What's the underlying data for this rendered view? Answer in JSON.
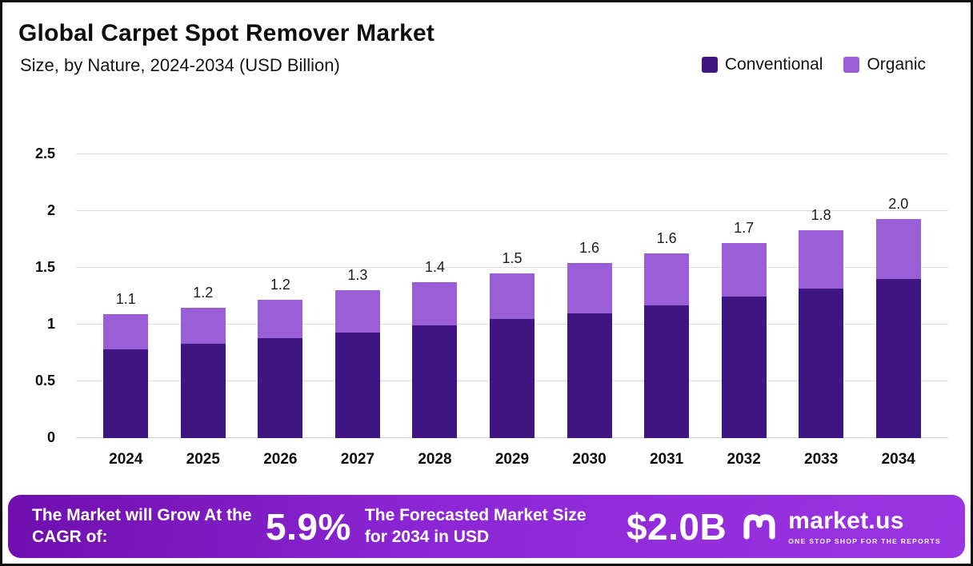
{
  "header": {
    "title": "Global Carpet Spot Remover Market",
    "subtitle": "Size, by Nature, 2024-2034 (USD Billion)"
  },
  "legend": [
    {
      "label": "Conventional",
      "color": "#3f1582"
    },
    {
      "label": "Organic",
      "color": "#9a5fd6"
    }
  ],
  "chart_data": {
    "type": "bar",
    "stacked": true,
    "title": "Global Carpet Spot Remover Market",
    "subtitle": "Size, by Nature, 2024-2034 (USD Billion)",
    "categories": [
      "2024",
      "2025",
      "2026",
      "2027",
      "2028",
      "2029",
      "2030",
      "2031",
      "2032",
      "2033",
      "2034"
    ],
    "series": [
      {
        "name": "Conventional",
        "color": "#3f1582",
        "values": [
          0.78,
          0.83,
          0.88,
          0.93,
          0.99,
          1.05,
          1.1,
          1.17,
          1.25,
          1.32,
          1.4
        ]
      },
      {
        "name": "Organic",
        "color": "#9a5fd6",
        "values": [
          0.31,
          0.32,
          0.34,
          0.37,
          0.38,
          0.4,
          0.44,
          0.46,
          0.47,
          0.51,
          0.53
        ]
      }
    ],
    "total_labels": [
      "1.1",
      "1.2",
      "1.2",
      "1.3",
      "1.4",
      "1.5",
      "1.6",
      "1.6",
      "1.7",
      "1.8",
      "2.0"
    ],
    "xlabel": "",
    "ylabel": "",
    "ylim": [
      0,
      2.5
    ],
    "yticks": [
      "0",
      "0.5",
      "1",
      "1.5",
      "2",
      "2.5"
    ],
    "grid": true,
    "legend_position": "top-right"
  },
  "footer": {
    "cagr_label": "The Market will Grow At the CAGR of:",
    "cagr_value": "5.9%",
    "forecast_label": "The Forecasted Market Size for 2034 in USD",
    "forecast_value": "$2.0B",
    "brand": {
      "name": "market.us",
      "tagline": "ONE STOP SHOP FOR THE REPORTS"
    }
  }
}
